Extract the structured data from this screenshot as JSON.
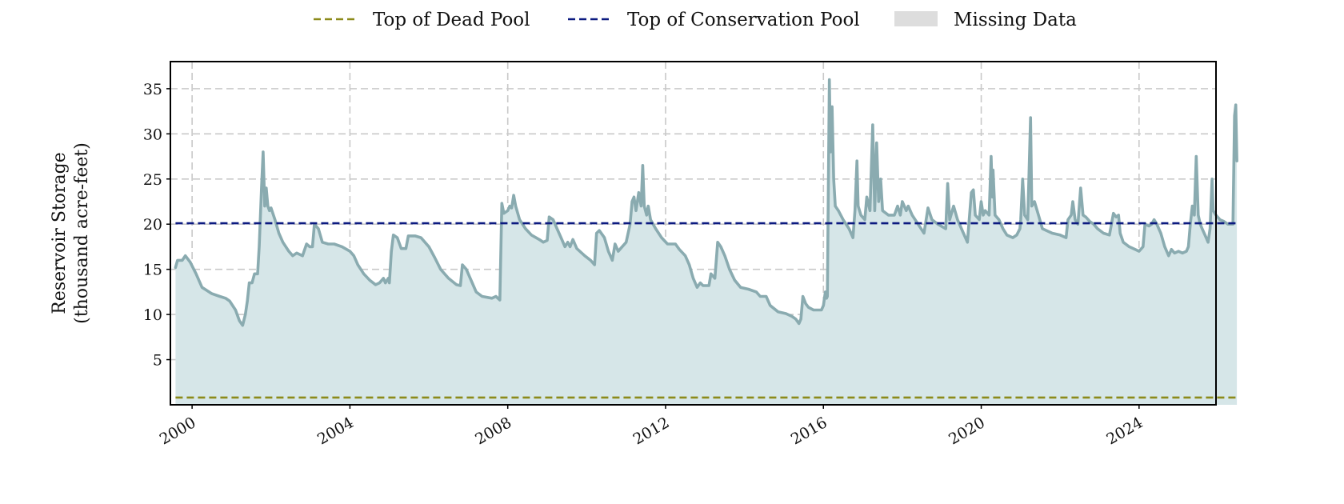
{
  "chart_data": {
    "type": "area",
    "title": "",
    "xlabel": "",
    "ylabel": [
      "Reservoir Storage",
      "(thousand acre-feet)"
    ],
    "xlim": [
      1999.45,
      2025.95
    ],
    "ylim": [
      0,
      38
    ],
    "x_ticks": [
      2000,
      2004,
      2008,
      2012,
      2016,
      2020,
      2024
    ],
    "y_ticks": [
      5,
      10,
      15,
      20,
      25,
      30,
      35
    ],
    "grid": true,
    "legend": {
      "placement": "top-center",
      "entries": [
        {
          "label": "Top of Dead Pool",
          "style": "dashed-line",
          "color": "#8c8a1a"
        },
        {
          "label": "Top of Conservation Pool",
          "style": "dashed-line",
          "color": "#0c1a80"
        },
        {
          "label": "Missing Data",
          "style": "patch",
          "color": "#dddddd"
        }
      ]
    },
    "reference_lines": [
      {
        "name": "Top of Dead Pool",
        "y": 0.8,
        "color": "#8c8a1a"
      },
      {
        "name": "Top of Conservation Pool",
        "y": 20.1,
        "color": "#0c1a80"
      }
    ],
    "series": [
      {
        "color": "#8aabb0",
        "fill": "#d6e6e8",
        "points": [
          [
            1999.58,
            15.2
          ],
          [
            1999.63,
            16.0
          ],
          [
            1999.75,
            16.0
          ],
          [
            1999.83,
            16.5
          ],
          [
            1999.95,
            15.8
          ],
          [
            2000.1,
            14.5
          ],
          [
            2000.25,
            13.0
          ],
          [
            2000.5,
            12.3
          ],
          [
            2000.7,
            12.0
          ],
          [
            2000.85,
            11.8
          ],
          [
            2000.95,
            11.5
          ],
          [
            2001.1,
            10.5
          ],
          [
            2001.2,
            9.3
          ],
          [
            2001.28,
            8.8
          ],
          [
            2001.35,
            10.0
          ],
          [
            2001.4,
            11.5
          ],
          [
            2001.45,
            13.5
          ],
          [
            2001.52,
            13.5
          ],
          [
            2001.58,
            14.5
          ],
          [
            2001.66,
            14.5
          ],
          [
            2001.7,
            17.5
          ],
          [
            2001.76,
            24.0
          ],
          [
            2001.8,
            28.0
          ],
          [
            2001.84,
            22.0
          ],
          [
            2001.88,
            24.0
          ],
          [
            2001.92,
            22.0
          ],
          [
            2001.96,
            21.5
          ],
          [
            2002.0,
            21.8
          ],
          [
            2002.1,
            20.5
          ],
          [
            2002.2,
            19.0
          ],
          [
            2002.3,
            18.0
          ],
          [
            2002.45,
            17.0
          ],
          [
            2002.55,
            16.5
          ],
          [
            2002.65,
            16.8
          ],
          [
            2002.8,
            16.5
          ],
          [
            2002.9,
            17.8
          ],
          [
            2002.98,
            17.5
          ],
          [
            2003.05,
            17.5
          ],
          [
            2003.1,
            20.0
          ],
          [
            2003.2,
            19.5
          ],
          [
            2003.3,
            18.0
          ],
          [
            2003.45,
            17.8
          ],
          [
            2003.6,
            17.8
          ],
          [
            2003.8,
            17.5
          ],
          [
            2004.0,
            17.0
          ],
          [
            2004.1,
            16.5
          ],
          [
            2004.2,
            15.5
          ],
          [
            2004.35,
            14.5
          ],
          [
            2004.5,
            13.8
          ],
          [
            2004.65,
            13.3
          ],
          [
            2004.75,
            13.5
          ],
          [
            2004.85,
            14.0
          ],
          [
            2004.9,
            13.5
          ],
          [
            2004.97,
            14.0
          ],
          [
            2005.0,
            13.5
          ],
          [
            2005.05,
            17.0
          ],
          [
            2005.1,
            18.8
          ],
          [
            2005.2,
            18.5
          ],
          [
            2005.3,
            17.3
          ],
          [
            2005.42,
            17.3
          ],
          [
            2005.48,
            18.7
          ],
          [
            2005.65,
            18.7
          ],
          [
            2005.8,
            18.5
          ],
          [
            2006.0,
            17.5
          ],
          [
            2006.15,
            16.3
          ],
          [
            2006.3,
            15.0
          ],
          [
            2006.5,
            14.0
          ],
          [
            2006.7,
            13.3
          ],
          [
            2006.8,
            13.2
          ],
          [
            2006.85,
            15.5
          ],
          [
            2006.95,
            15.0
          ],
          [
            2007.1,
            13.5
          ],
          [
            2007.2,
            12.5
          ],
          [
            2007.35,
            12.0
          ],
          [
            2007.6,
            11.8
          ],
          [
            2007.7,
            12.0
          ],
          [
            2007.8,
            11.6
          ],
          [
            2007.85,
            22.3
          ],
          [
            2007.9,
            21.2
          ],
          [
            2008.0,
            21.5
          ],
          [
            2008.05,
            22.0
          ],
          [
            2008.1,
            21.8
          ],
          [
            2008.15,
            23.2
          ],
          [
            2008.2,
            22.0
          ],
          [
            2008.3,
            20.5
          ],
          [
            2008.45,
            19.5
          ],
          [
            2008.6,
            18.8
          ],
          [
            2008.8,
            18.3
          ],
          [
            2008.9,
            18.0
          ],
          [
            2009.0,
            18.2
          ],
          [
            2009.05,
            20.8
          ],
          [
            2009.15,
            20.5
          ],
          [
            2009.25,
            19.5
          ],
          [
            2009.35,
            18.5
          ],
          [
            2009.45,
            17.5
          ],
          [
            2009.52,
            18.0
          ],
          [
            2009.58,
            17.5
          ],
          [
            2009.65,
            18.3
          ],
          [
            2009.75,
            17.3
          ],
          [
            2009.95,
            16.5
          ],
          [
            2010.1,
            16.0
          ],
          [
            2010.2,
            15.5
          ],
          [
            2010.25,
            19.0
          ],
          [
            2010.32,
            19.3
          ],
          [
            2010.45,
            18.5
          ],
          [
            2010.55,
            17.0
          ],
          [
            2010.65,
            16.0
          ],
          [
            2010.72,
            17.8
          ],
          [
            2010.8,
            17.0
          ],
          [
            2010.9,
            17.5
          ],
          [
            2011.0,
            18.0
          ],
          [
            2011.1,
            20.0
          ],
          [
            2011.15,
            22.5
          ],
          [
            2011.2,
            23.0
          ],
          [
            2011.25,
            21.5
          ],
          [
            2011.32,
            23.5
          ],
          [
            2011.38,
            22.0
          ],
          [
            2011.42,
            26.5
          ],
          [
            2011.46,
            22.0
          ],
          [
            2011.52,
            21.0
          ],
          [
            2011.56,
            22.0
          ],
          [
            2011.62,
            20.5
          ],
          [
            2011.75,
            19.5
          ],
          [
            2011.9,
            18.5
          ],
          [
            2012.05,
            17.8
          ],
          [
            2012.25,
            17.8
          ],
          [
            2012.35,
            17.2
          ],
          [
            2012.5,
            16.5
          ],
          [
            2012.6,
            15.5
          ],
          [
            2012.7,
            14.0
          ],
          [
            2012.8,
            13.0
          ],
          [
            2012.88,
            13.5
          ],
          [
            2012.95,
            13.2
          ],
          [
            2013.1,
            13.2
          ],
          [
            2013.15,
            14.5
          ],
          [
            2013.25,
            14.0
          ],
          [
            2013.32,
            18.0
          ],
          [
            2013.4,
            17.5
          ],
          [
            2013.5,
            16.5
          ],
          [
            2013.62,
            15.0
          ],
          [
            2013.75,
            13.8
          ],
          [
            2013.9,
            13.0
          ],
          [
            2014.1,
            12.8
          ],
          [
            2014.3,
            12.5
          ],
          [
            2014.4,
            12.0
          ],
          [
            2014.55,
            12.0
          ],
          [
            2014.65,
            11.0
          ],
          [
            2014.85,
            10.3
          ],
          [
            2015.05,
            10.1
          ],
          [
            2015.2,
            9.8
          ],
          [
            2015.3,
            9.5
          ],
          [
            2015.38,
            9.0
          ],
          [
            2015.43,
            9.5
          ],
          [
            2015.48,
            12.0
          ],
          [
            2015.55,
            11.2
          ],
          [
            2015.62,
            10.8
          ],
          [
            2015.75,
            10.5
          ],
          [
            2015.95,
            10.5
          ],
          [
            2016.0,
            11.0
          ],
          [
            2016.05,
            12.5
          ],
          [
            2016.08,
            11.8
          ],
          [
            2016.1,
            12.0
          ],
          [
            2016.15,
            36.0
          ],
          [
            2016.18,
            28.0
          ],
          [
            2016.22,
            33.0
          ],
          [
            2016.26,
            25.0
          ],
          [
            2016.3,
            22.0
          ],
          [
            2016.38,
            21.5
          ],
          [
            2016.5,
            20.5
          ],
          [
            2016.65,
            19.5
          ],
          [
            2016.75,
            18.5
          ],
          [
            2016.8,
            21.5
          ],
          [
            2016.85,
            27.0
          ],
          [
            2016.88,
            22.0
          ],
          [
            2016.95,
            21.0
          ],
          [
            2017.05,
            20.5
          ],
          [
            2017.1,
            23.0
          ],
          [
            2017.18,
            21.5
          ],
          [
            2017.25,
            31.0
          ],
          [
            2017.3,
            21.5
          ],
          [
            2017.35,
            29.0
          ],
          [
            2017.4,
            22.5
          ],
          [
            2017.45,
            25.0
          ],
          [
            2017.5,
            21.5
          ],
          [
            2017.65,
            21.0
          ],
          [
            2017.8,
            21.0
          ],
          [
            2017.88,
            22.0
          ],
          [
            2017.95,
            21.0
          ],
          [
            2018.0,
            22.5
          ],
          [
            2018.1,
            21.5
          ],
          [
            2018.15,
            22.0
          ],
          [
            2018.25,
            21.0
          ],
          [
            2018.4,
            20.0
          ],
          [
            2018.55,
            19.0
          ],
          [
            2018.65,
            21.8
          ],
          [
            2018.75,
            20.5
          ],
          [
            2018.9,
            20.0
          ],
          [
            2019.1,
            19.5
          ],
          [
            2019.15,
            24.5
          ],
          [
            2019.2,
            20.5
          ],
          [
            2019.3,
            22.0
          ],
          [
            2019.4,
            20.5
          ],
          [
            2019.55,
            19.0
          ],
          [
            2019.65,
            18.0
          ],
          [
            2019.75,
            23.5
          ],
          [
            2019.8,
            23.8
          ],
          [
            2019.85,
            21.0
          ],
          [
            2019.95,
            20.5
          ],
          [
            2020.0,
            22.5
          ],
          [
            2020.05,
            21.0
          ],
          [
            2020.1,
            21.5
          ],
          [
            2020.2,
            21.0
          ],
          [
            2020.25,
            27.5
          ],
          [
            2020.28,
            23.0
          ],
          [
            2020.3,
            26.0
          ],
          [
            2020.35,
            21.0
          ],
          [
            2020.45,
            20.5
          ],
          [
            2020.55,
            19.5
          ],
          [
            2020.65,
            18.8
          ],
          [
            2020.8,
            18.5
          ],
          [
            2020.9,
            18.8
          ],
          [
            2020.98,
            19.5
          ],
          [
            2021.0,
            20.5
          ],
          [
            2021.05,
            25.0
          ],
          [
            2021.1,
            21.0
          ],
          [
            2021.18,
            20.5
          ],
          [
            2021.25,
            31.8
          ],
          [
            2021.28,
            22.0
          ],
          [
            2021.35,
            22.5
          ],
          [
            2021.45,
            21.0
          ],
          [
            2021.55,
            19.5
          ],
          [
            2021.65,
            19.3
          ],
          [
            2021.8,
            19.0
          ],
          [
            2022.0,
            18.8
          ],
          [
            2022.15,
            18.5
          ],
          [
            2022.2,
            20.5
          ],
          [
            2022.28,
            21.0
          ],
          [
            2022.32,
            22.5
          ],
          [
            2022.38,
            20.5
          ],
          [
            2022.45,
            20.0
          ],
          [
            2022.52,
            24.0
          ],
          [
            2022.58,
            21.0
          ],
          [
            2022.65,
            20.8
          ],
          [
            2022.75,
            20.3
          ],
          [
            2022.85,
            20.0
          ],
          [
            2022.95,
            19.5
          ],
          [
            2023.1,
            19.0
          ],
          [
            2023.25,
            18.8
          ],
          [
            2023.35,
            21.2
          ],
          [
            2023.42,
            20.8
          ],
          [
            2023.48,
            21.0
          ],
          [
            2023.52,
            19.0
          ],
          [
            2023.6,
            18.0
          ],
          [
            2023.75,
            17.5
          ],
          [
            2023.9,
            17.2
          ],
          [
            2024.0,
            17.0
          ],
          [
            2024.1,
            17.5
          ],
          [
            2024.15,
            20.0
          ],
          [
            2024.25,
            19.8
          ],
          [
            2024.32,
            20.0
          ],
          [
            2024.38,
            20.5
          ],
          [
            2024.45,
            20.0
          ],
          [
            2024.55,
            19.0
          ],
          [
            2024.65,
            17.5
          ],
          [
            2024.75,
            16.5
          ],
          [
            2024.82,
            17.2
          ],
          [
            2024.9,
            16.8
          ],
          [
            2025.0,
            17.0
          ],
          [
            2025.1,
            16.8
          ],
          [
            2025.2,
            17.0
          ],
          [
            2025.25,
            17.5
          ],
          [
            2025.3,
            20.0
          ],
          [
            2025.35,
            22.0
          ],
          [
            2025.4,
            21.0
          ],
          [
            2025.45,
            27.5
          ],
          [
            2025.5,
            21.0
          ],
          [
            2025.55,
            20.0
          ],
          [
            2025.6,
            19.5
          ],
          [
            2025.65,
            19.0
          ],
          [
            2025.7,
            18.5
          ],
          [
            2025.75,
            18.0
          ],
          [
            2025.8,
            19.5
          ],
          [
            2025.85,
            25.0
          ],
          [
            2025.88,
            21.5
          ],
          [
            2025.95,
            21.0
          ],
          [
            2026.05,
            20.5
          ],
          [
            2026.15,
            20.3
          ],
          [
            2026.25,
            20.0
          ],
          [
            2026.38,
            20.0
          ],
          [
            2026.42,
            32.0
          ],
          [
            2026.45,
            33.2
          ],
          [
            2026.48,
            27.0
          ]
        ]
      }
    ]
  }
}
